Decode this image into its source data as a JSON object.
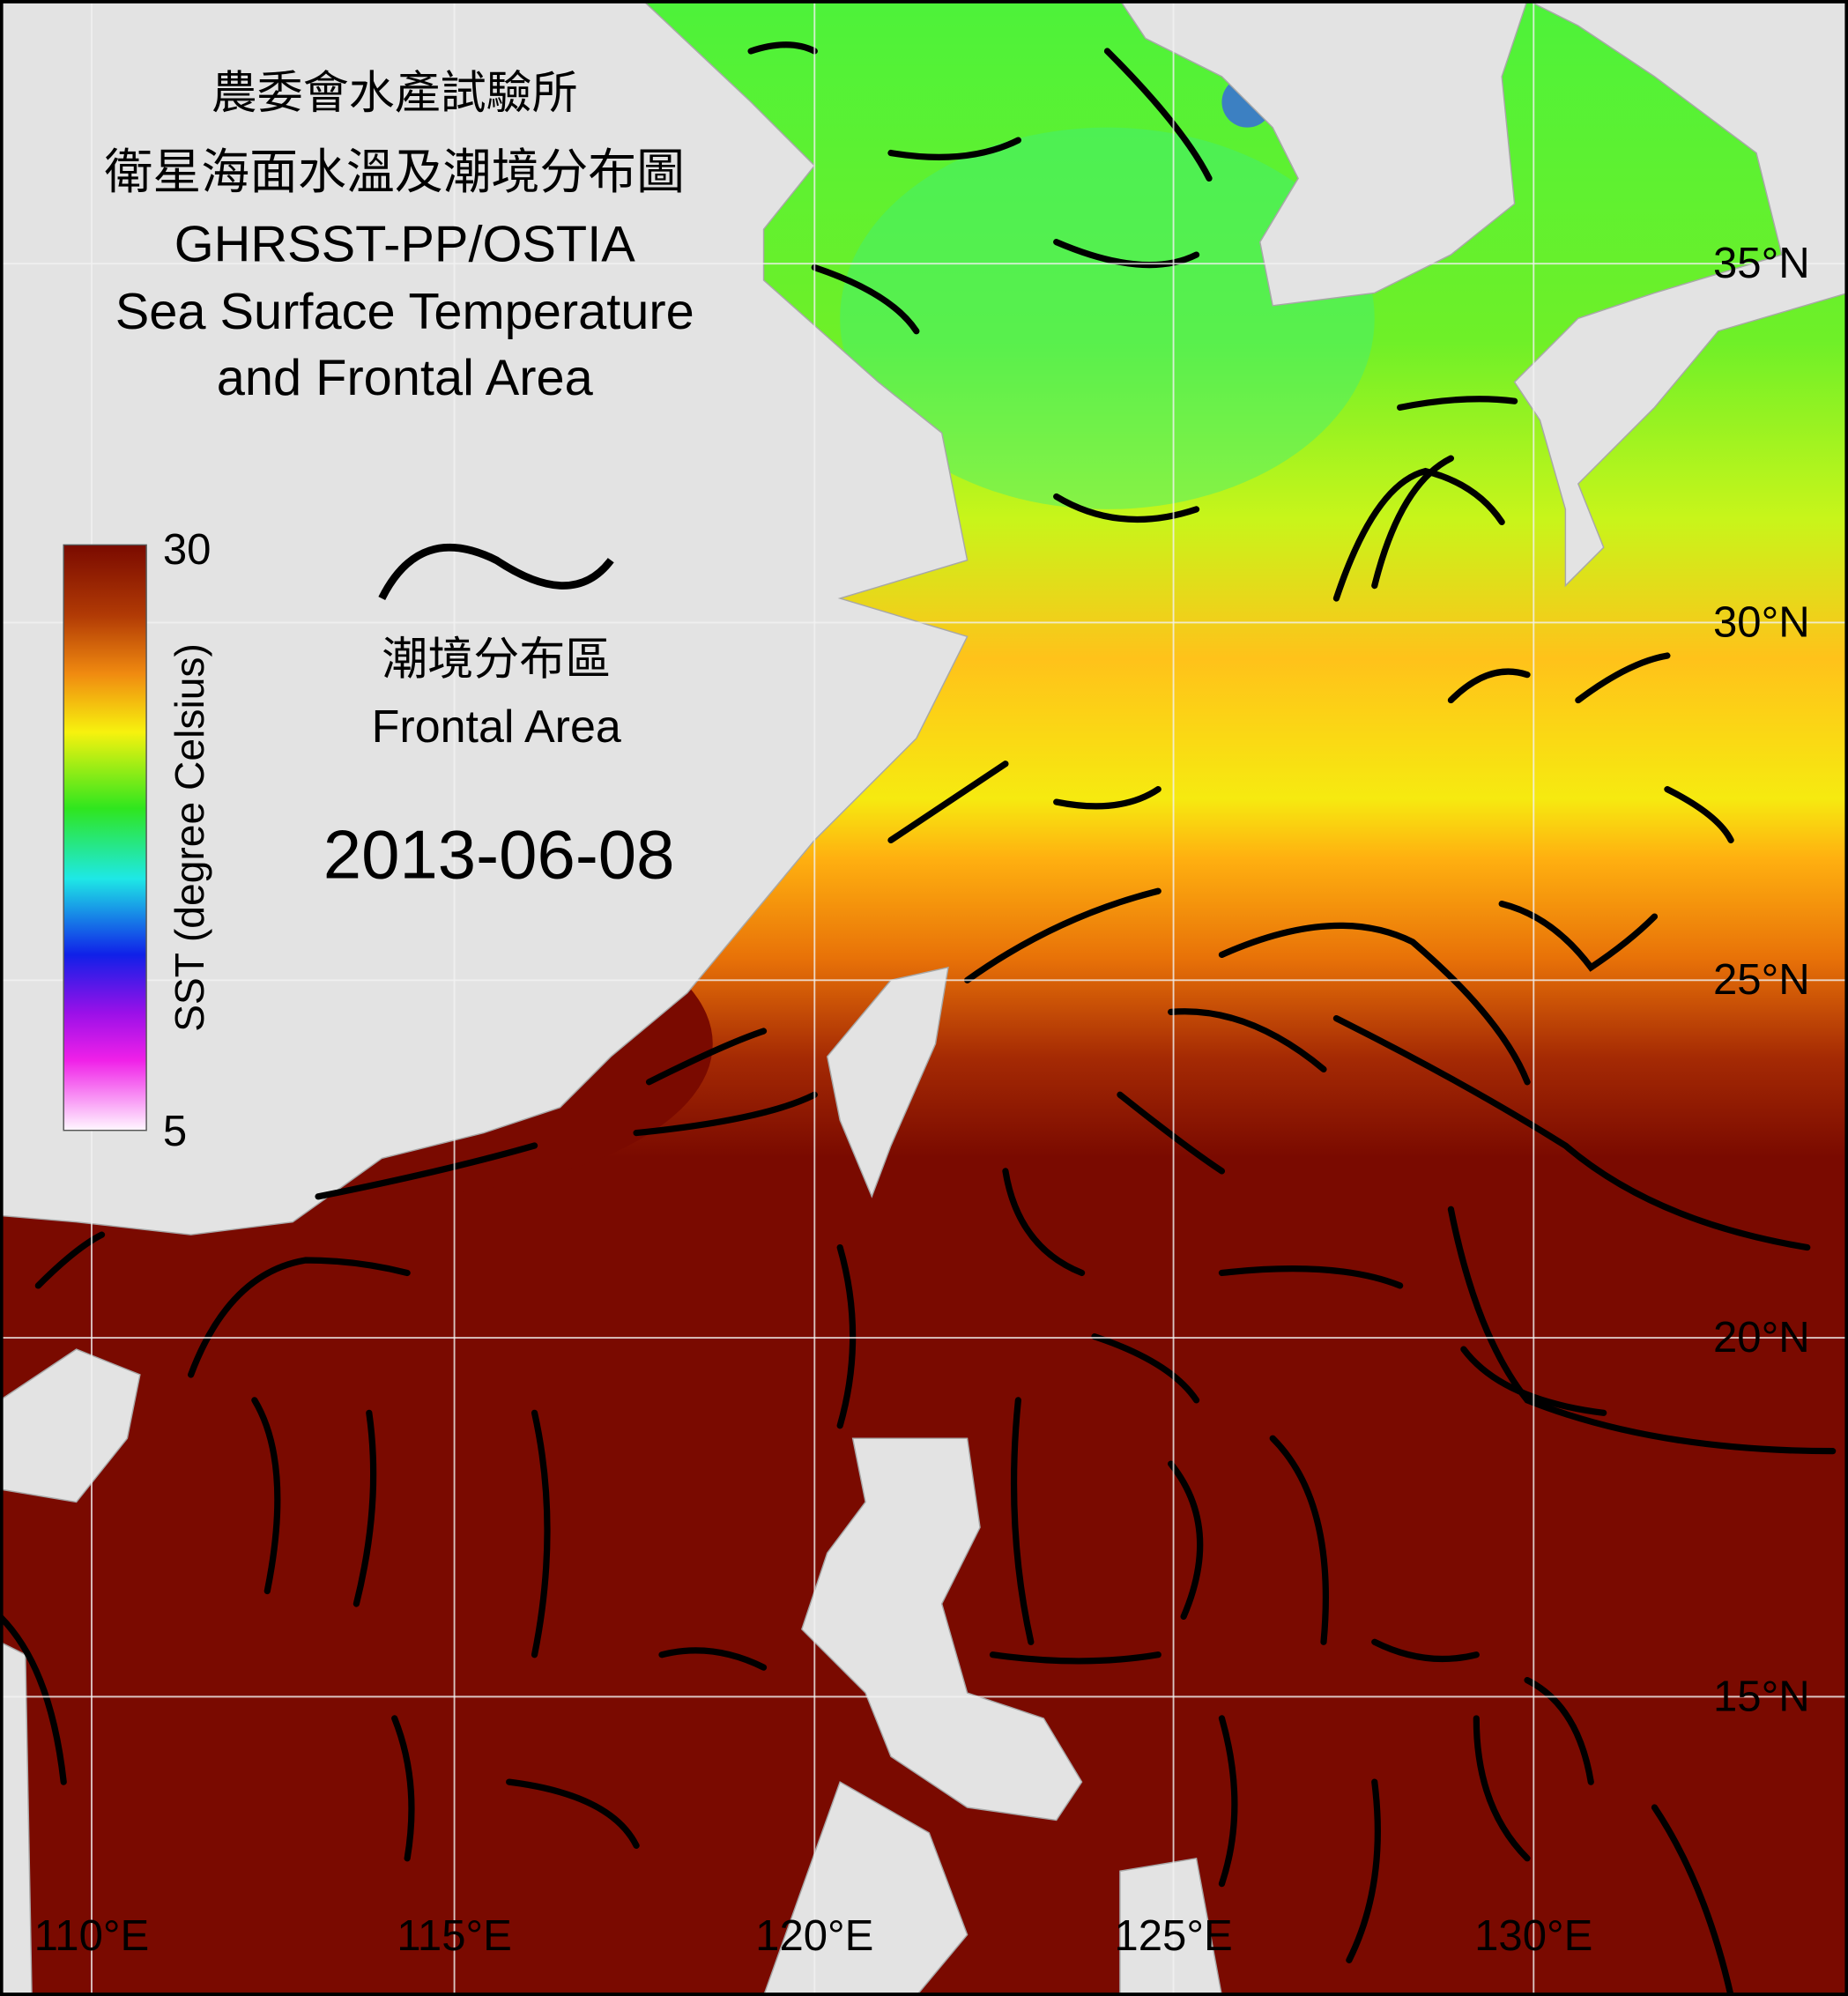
{
  "header": {
    "title_lines": [
      "農委會水產試驗所",
      "衛星海面水溫及潮境分布圖",
      "GHRSST-PP/OSTIA",
      "Sea Surface Temperature",
      "and Frontal Area"
    ]
  },
  "colorbar": {
    "max": 30,
    "min": 5,
    "label": "SST (degree Celsius)"
  },
  "legend": {
    "label_zh": "潮境分布區",
    "label_en": "Frontal Area"
  },
  "date": "2013-06-08",
  "lat_labels": [
    "35°N",
    "30°N",
    "25°N",
    "20°N",
    "15°N"
  ],
  "lon_labels": [
    "110°E",
    "115°E",
    "120°E",
    "125°E",
    "130°E"
  ]
}
